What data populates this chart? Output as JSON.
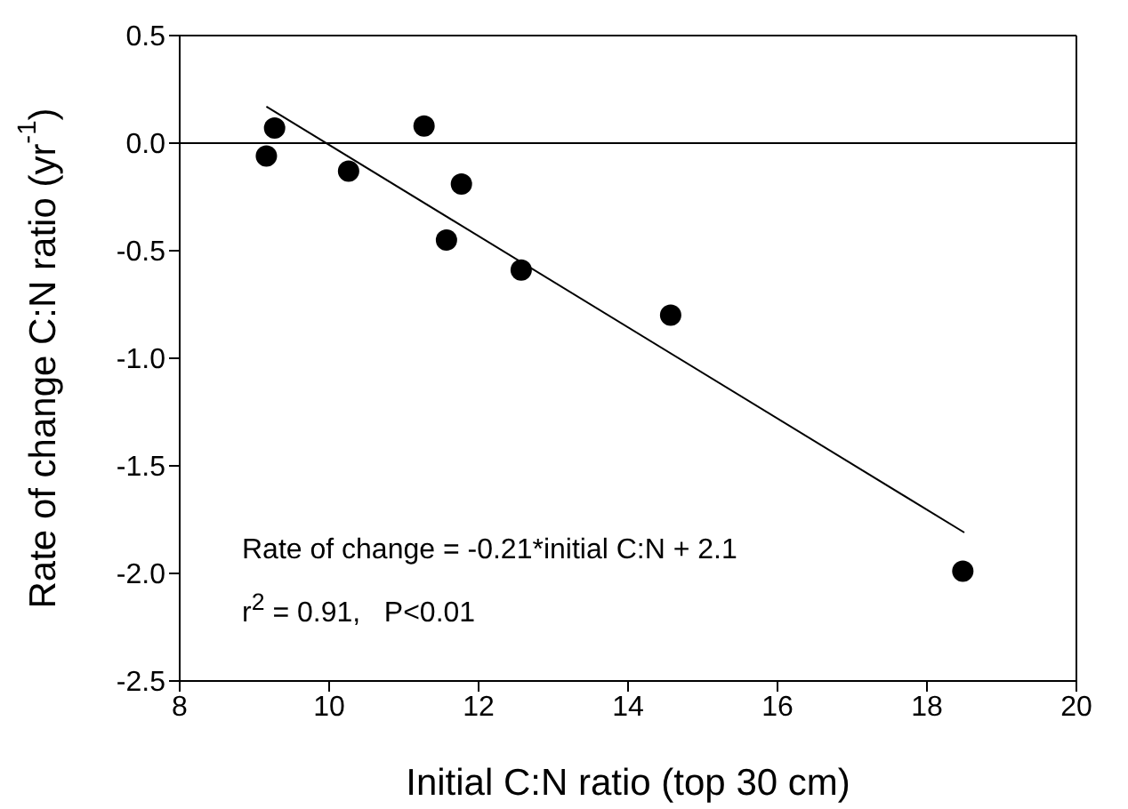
{
  "chart_data": {
    "type": "scatter",
    "xlabel": "Initial C:N ratio (top 30 cm)",
    "ylabel": "Rate of change C:N ratio (yr$^{-1}$)",
    "xlim": [
      8,
      20
    ],
    "xticks": [
      8,
      10,
      12,
      14,
      16,
      18,
      20
    ],
    "ylim": [
      -2.5,
      0.5
    ],
    "yticks": [
      {
        "value": 0.5,
        "label": "0.5"
      },
      {
        "value": 0,
        "label": "0.0"
      },
      {
        "value": -0.5,
        "label": "-0.5"
      },
      {
        "value": -1,
        "label": "-1.0"
      },
      {
        "value": -1.5,
        "label": "-1.5"
      },
      {
        "value": -2,
        "label": "-2.0"
      },
      {
        "value": -2.5,
        "label": "-2.5"
      }
    ],
    "series": [
      {
        "type": "scatter",
        "color": "#000000",
        "marker": "circle",
        "x": [
          9.16,
          9.27,
          10.26,
          11.27,
          11.57,
          11.77,
          12.57,
          14.57,
          18.48
        ],
        "values": [
          -0.06,
          0.07,
          -0.13,
          0.08,
          -0.45,
          -0.19,
          -0.59,
          -0.8,
          -1.99
        ]
      },
      {
        "type": "line",
        "color": "#000000",
        "marker": "none",
        "line_style": "solid",
        "x": [
          9.16,
          18.5
        ],
        "values": [
          0.17,
          -1.81
        ]
      }
    ],
    "ref_lines": [
      {
        "axis": "y",
        "value": 0,
        "color": "#000000"
      }
    ],
    "annotations": [
      "Rate of change = -0.21*initial C:N + 2.1",
      "r$^{2}$ = 0.91,   P<0.01"
    ]
  }
}
